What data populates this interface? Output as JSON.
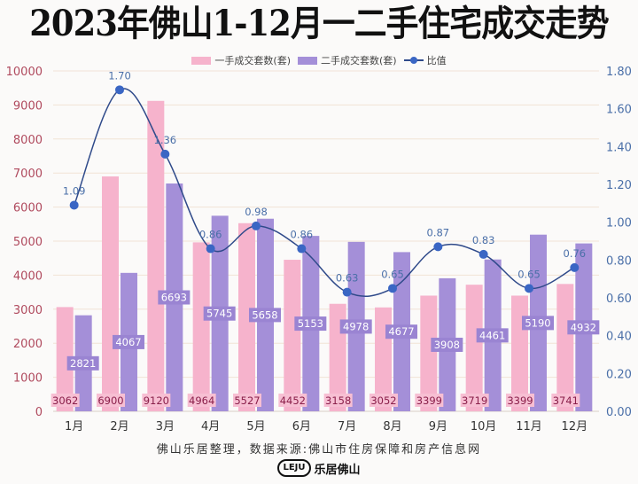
{
  "header": {
    "title": "2023年佛山1-12月一二手住宅成交走势"
  },
  "legend": {
    "items": [
      {
        "label": "一手成交套数(套)",
        "color": "#f6b3cc",
        "type": "bar"
      },
      {
        "label": "二手成交套数(套)",
        "color": "#a48fd8",
        "type": "bar"
      },
      {
        "label": "比值",
        "color": "#3a66c4",
        "type": "line"
      }
    ]
  },
  "footer": {
    "source": "佛山乐居整理，数据来源:佛山市住房保障和房产信息网",
    "brand_logo": "LEJU",
    "brand_name": "乐居佛山"
  },
  "colors": {
    "new_bar": "#f6b3cc",
    "second_bar": "#a48fd8",
    "new_label_bg": "#f7bfd3",
    "new_label_text": "#8a1f4a",
    "second_label_bg": "#9a84d2",
    "second_label_text": "#ffffff",
    "line": "#2f4a8a",
    "marker": "#3a66c4",
    "left_axis_text": "#b04a5e",
    "right_axis_text": "#4a6fa8",
    "grid": "#f1e3d6"
  },
  "chart_data": {
    "type": "bar",
    "title": "2023年佛山1-12月一二手住宅成交走势",
    "categories": [
      "1月",
      "2月",
      "3月",
      "4月",
      "5月",
      "6月",
      "7月",
      "8月",
      "9月",
      "10月",
      "11月",
      "12月"
    ],
    "series": [
      {
        "name": "一手成交套数(套)",
        "type": "bar",
        "axis": "left",
        "values": [
          3062,
          6900,
          9120,
          4964,
          5527,
          4452,
          3158,
          3052,
          3399,
          3719,
          3399,
          3741
        ]
      },
      {
        "name": "二手成交套数(套)",
        "type": "bar",
        "axis": "left",
        "values": [
          2821,
          4067,
          6693,
          5745,
          5658,
          5153,
          4978,
          4677,
          3908,
          4461,
          5190,
          4932
        ]
      },
      {
        "name": "比值",
        "type": "line",
        "axis": "right",
        "values": [
          1.09,
          1.7,
          1.36,
          0.86,
          0.98,
          0.86,
          0.63,
          0.65,
          0.87,
          0.83,
          0.65,
          0.76
        ]
      }
    ],
    "xlabel": "",
    "ylabel": "",
    "ylim": [
      0,
      10000
    ],
    "y_ticks": [
      0,
      1000,
      2000,
      3000,
      4000,
      5000,
      6000,
      7000,
      8000,
      9000,
      10000
    ],
    "y2lim": [
      0,
      1.8
    ],
    "y2_ticks": [
      "0.00",
      "0.20",
      "0.40",
      "0.60",
      "0.80",
      "1.00",
      "1.20",
      "1.40",
      "1.60",
      "1.80"
    ],
    "grid": true,
    "legend_position": "top"
  }
}
